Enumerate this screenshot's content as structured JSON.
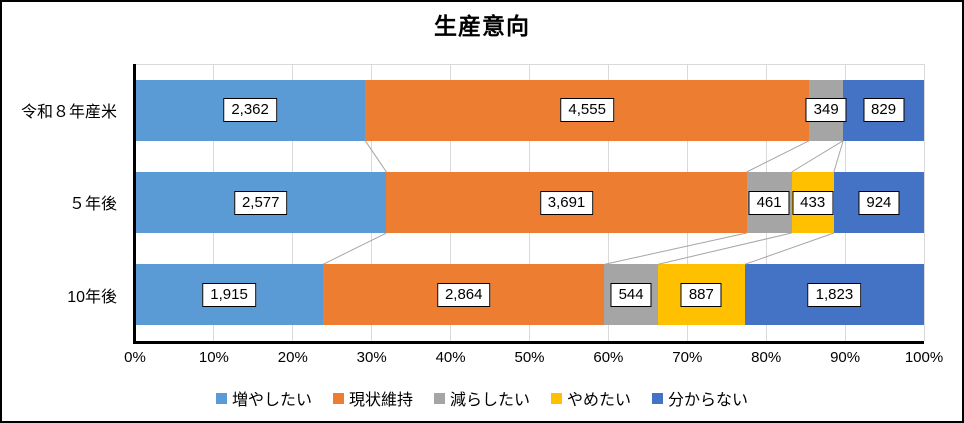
{
  "title": "生産意向",
  "chart_data": {
    "type": "bar",
    "stacked": true,
    "orientation": "horizontal",
    "title": "生産意向",
    "categories": [
      "令和８年産米",
      "５年後",
      "10年後"
    ],
    "series": [
      {
        "name": "増やしたい",
        "color": "#5B9BD5",
        "values": [
          2362,
          2577,
          1915
        ],
        "labels": [
          "2,362",
          "2,577",
          "1,915"
        ]
      },
      {
        "name": "現状維持",
        "color": "#ED7D31",
        "values": [
          4555,
          3691,
          2864
        ],
        "labels": [
          "4,555",
          "3,691",
          "2,864"
        ]
      },
      {
        "name": "減らしたい",
        "color": "#A5A5A5",
        "values": [
          349,
          461,
          544
        ],
        "labels": [
          "349",
          "461",
          "544"
        ]
      },
      {
        "name": "やめたい",
        "color": "#FFC000",
        "values": [
          0,
          433,
          887
        ],
        "labels": [
          "",
          "433",
          "887"
        ]
      },
      {
        "name": "分からない",
        "color": "#4472C4",
        "values": [
          829,
          924,
          1823
        ],
        "labels": [
          "829",
          "924",
          "1,823"
        ]
      }
    ],
    "x_axis": {
      "ticks": [
        "0%",
        "10%",
        "20%",
        "30%",
        "40%",
        "50%",
        "60%",
        "70%",
        "80%",
        "90%",
        "100%"
      ],
      "min": 0,
      "max": 100,
      "unit": "percent-of-row-total"
    },
    "gridlines": true,
    "series_connector_lines": true,
    "legend_position": "bottom",
    "colors": {
      "gridline": "#D9D9D9",
      "axis": "#000000",
      "connector_line": "#A6A6A6",
      "label_box_bg": "#FFFFFF",
      "label_box_border": "#000000"
    }
  }
}
